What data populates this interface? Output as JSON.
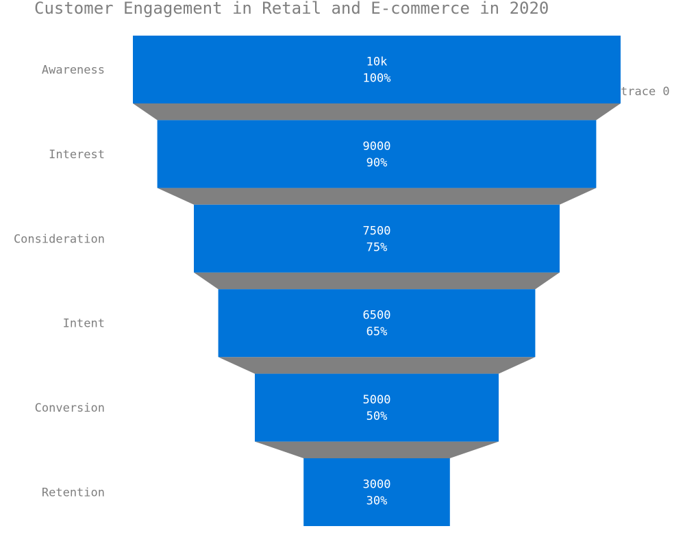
{
  "chart_data": {
    "type": "funnel",
    "title": "Customer Engagement in Retail and E-commerce in 2020",
    "categories": [
      "Awareness",
      "Interest",
      "Consideration",
      "Intent",
      "Conversion",
      "Retention"
    ],
    "values": [
      10000,
      9000,
      7500,
      6500,
      5000,
      3000
    ],
    "value_labels": [
      "10k",
      "9000",
      "7500",
      "6500",
      "5000",
      "3000"
    ],
    "percent_labels": [
      "100%",
      "90%",
      "75%",
      "65%",
      "50%",
      "30%"
    ],
    "series": [
      {
        "name": "trace 0",
        "values": [
          10000,
          9000,
          7500,
          6500,
          5000,
          3000
        ]
      }
    ],
    "legend": "top-right",
    "colors": {
      "bar": "#0074d9",
      "connector": "#808080",
      "text": "#7f7f7f",
      "bar_text": "#ffffff"
    }
  }
}
